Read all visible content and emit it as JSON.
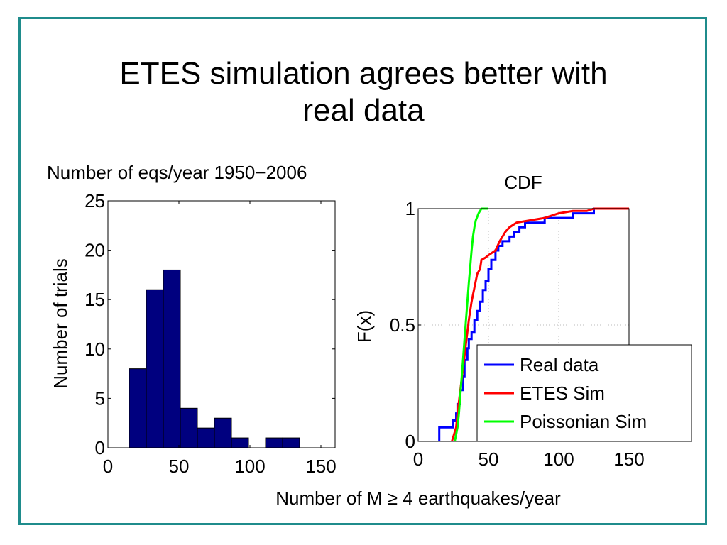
{
  "slide": {
    "title_line1": "ETES simulation agrees better with",
    "title_line2": "real data",
    "shared_xlabel": "Number of M ≥ 4 earthquakes/year"
  },
  "colors": {
    "border": "#1f8c8c",
    "bar_fill": "#00007f",
    "real": "#0000ff",
    "etes": "#ff0000",
    "poisson": "#00ff00"
  },
  "chart_data": [
    {
      "type": "bar",
      "title": "Number of eqs/year 1950−2006",
      "xlabel": "",
      "ylabel": "Number of trials",
      "xlim": [
        0,
        160
      ],
      "ylim": [
        0,
        25
      ],
      "xticks": [
        "0",
        "50",
        "100",
        "150"
      ],
      "yticks": [
        "0",
        "5",
        "10",
        "15",
        "20",
        "25"
      ],
      "bins": [
        {
          "x0": 15,
          "x1": 27,
          "value": 8
        },
        {
          "x0": 27,
          "x1": 39,
          "value": 16
        },
        {
          "x0": 39,
          "x1": 51,
          "value": 18
        },
        {
          "x0": 51,
          "x1": 63,
          "value": 4
        },
        {
          "x0": 63,
          "x1": 75,
          "value": 2
        },
        {
          "x0": 75,
          "x1": 87,
          "value": 3
        },
        {
          "x0": 87,
          "x1": 99,
          "value": 1
        },
        {
          "x0": 99,
          "x1": 111,
          "value": 0
        },
        {
          "x0": 111,
          "x1": 123,
          "value": 1
        },
        {
          "x0": 123,
          "x1": 135,
          "value": 1
        }
      ]
    },
    {
      "type": "line",
      "title": "CDF",
      "xlabel": "",
      "ylabel": "F(x)",
      "xlim": [
        0,
        150
      ],
      "ylim": [
        0,
        1
      ],
      "xticks": [
        "0",
        "50",
        "100",
        "150"
      ],
      "yticks": [
        "0",
        "0.5",
        "1"
      ],
      "grid": true,
      "legend_position": "bottom-right",
      "series": [
        {
          "name": "Real data",
          "color": "#0000ff",
          "points": [
            [
              15,
              0
            ],
            [
              15,
              0.06
            ],
            [
              25,
              0.06
            ],
            [
              25,
              0.09
            ],
            [
              27,
              0.09
            ],
            [
              27,
              0.12
            ],
            [
              28,
              0.12
            ],
            [
              28,
              0.16
            ],
            [
              30,
              0.16
            ],
            [
              30,
              0.22
            ],
            [
              32,
              0.22
            ],
            [
              32,
              0.28
            ],
            [
              33,
              0.28
            ],
            [
              33,
              0.35
            ],
            [
              35,
              0.35
            ],
            [
              35,
              0.4
            ],
            [
              36,
              0.4
            ],
            [
              36,
              0.44
            ],
            [
              38,
              0.44
            ],
            [
              38,
              0.47
            ],
            [
              40,
              0.47
            ],
            [
              40,
              0.52
            ],
            [
              42,
              0.52
            ],
            [
              42,
              0.56
            ],
            [
              44,
              0.56
            ],
            [
              44,
              0.6
            ],
            [
              46,
              0.6
            ],
            [
              46,
              0.65
            ],
            [
              48,
              0.65
            ],
            [
              48,
              0.69
            ],
            [
              50,
              0.69
            ],
            [
              50,
              0.74
            ],
            [
              52,
              0.74
            ],
            [
              52,
              0.78
            ],
            [
              55,
              0.78
            ],
            [
              55,
              0.82
            ],
            [
              57,
              0.82
            ],
            [
              57,
              0.84
            ],
            [
              60,
              0.84
            ],
            [
              60,
              0.86
            ],
            [
              65,
              0.86
            ],
            [
              65,
              0.88
            ],
            [
              68,
              0.88
            ],
            [
              68,
              0.9
            ],
            [
              72,
              0.9
            ],
            [
              72,
              0.92
            ],
            [
              76,
              0.92
            ],
            [
              76,
              0.94
            ],
            [
              90,
              0.94
            ],
            [
              90,
              0.96
            ],
            [
              110,
              0.96
            ],
            [
              110,
              0.98
            ],
            [
              125,
              0.98
            ],
            [
              125,
              1.0
            ],
            [
              135,
              1.0
            ]
          ]
        },
        {
          "name": "ETES Sim",
          "color": "#ff0000",
          "points": [
            [
              24,
              0
            ],
            [
              25,
              0.02
            ],
            [
              27,
              0.06
            ],
            [
              28,
              0.12
            ],
            [
              30,
              0.22
            ],
            [
              32,
              0.32
            ],
            [
              34,
              0.42
            ],
            [
              36,
              0.52
            ],
            [
              38,
              0.6
            ],
            [
              40,
              0.66
            ],
            [
              42,
              0.72
            ],
            [
              44,
              0.74
            ],
            [
              45,
              0.78
            ],
            [
              48,
              0.79
            ],
            [
              50,
              0.8
            ],
            [
              55,
              0.82
            ],
            [
              58,
              0.86
            ],
            [
              60,
              0.88
            ],
            [
              62,
              0.9
            ],
            [
              65,
              0.92
            ],
            [
              70,
              0.94
            ],
            [
              80,
              0.95
            ],
            [
              90,
              0.96
            ],
            [
              100,
              0.98
            ],
            [
              110,
              0.99
            ],
            [
              120,
              0.99
            ],
            [
              125,
              1.0
            ],
            [
              150,
              1.0
            ]
          ]
        },
        {
          "name": "Poissonian Sim",
          "color": "#00ff00",
          "points": [
            [
              26,
              0
            ],
            [
              27,
              0.03
            ],
            [
              28,
              0.06
            ],
            [
              29,
              0.12
            ],
            [
              30,
              0.2
            ],
            [
              31,
              0.28
            ],
            [
              32,
              0.36
            ],
            [
              33,
              0.44
            ],
            [
              34,
              0.52
            ],
            [
              35,
              0.6
            ],
            [
              36,
              0.68
            ],
            [
              37,
              0.75
            ],
            [
              38,
              0.82
            ],
            [
              39,
              0.88
            ],
            [
              40,
              0.92
            ],
            [
              41,
              0.95
            ],
            [
              43,
              0.98
            ],
            [
              45,
              1.0
            ],
            [
              50,
              1.0
            ]
          ]
        }
      ]
    }
  ]
}
